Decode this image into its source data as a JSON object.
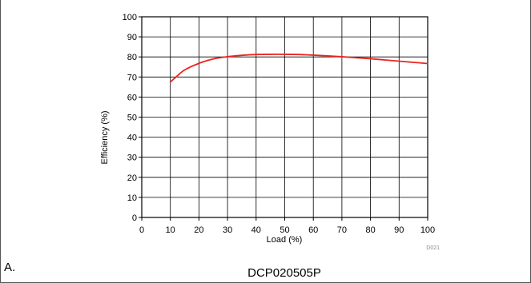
{
  "chart_data": {
    "type": "line",
    "title": "",
    "xlabel": "Load (%)",
    "ylabel": "Efficiency (%)",
    "xlim": [
      0,
      100
    ],
    "ylim": [
      0,
      100
    ],
    "xticks": [
      0,
      10,
      20,
      30,
      40,
      50,
      60,
      70,
      80,
      90,
      100
    ],
    "yticks": [
      0,
      10,
      20,
      30,
      40,
      50,
      60,
      70,
      80,
      90,
      100
    ],
    "grid": true,
    "legend": "none",
    "series": [
      {
        "color": "#e8251f",
        "x": [
          10,
          12,
          15,
          20,
          25,
          30,
          35,
          40,
          45,
          50,
          55,
          60,
          65,
          70,
          75,
          80,
          85,
          90,
          95,
          100
        ],
        "y": [
          67.5,
          70,
          73.5,
          76.8,
          79,
          80.1,
          80.8,
          81.2,
          81.3,
          81.3,
          81.2,
          80.9,
          80.5,
          80.1,
          79.6,
          79.1,
          78.5,
          77.9,
          77.3,
          76.7
        ]
      }
    ]
  },
  "figure": {
    "code": "D021",
    "panel_label": "A.",
    "caption": "DCP020505P"
  },
  "colors": {
    "curve": "#e8251f",
    "grid": "#000000",
    "border": "#555555"
  }
}
